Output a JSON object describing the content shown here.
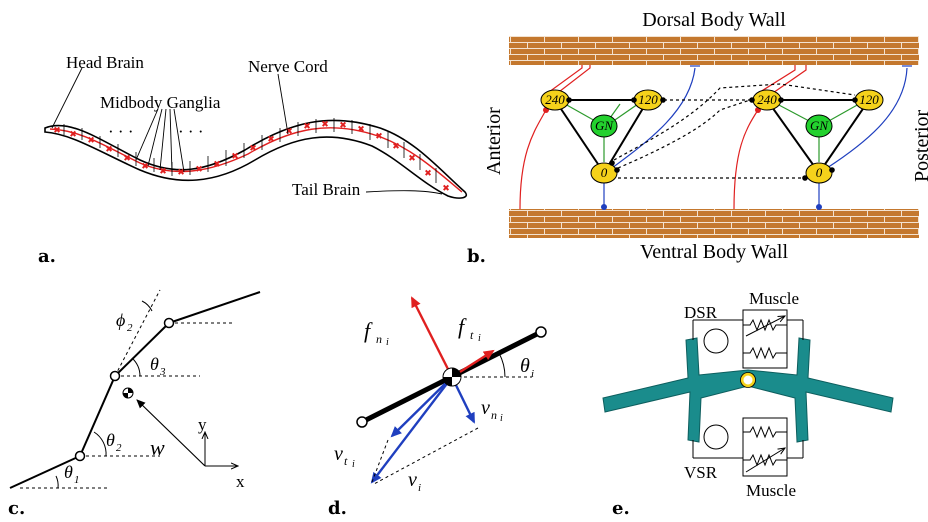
{
  "colors": {
    "brick": "#c4782e",
    "brick_line": "#ffffff",
    "node_yellow": "#f5d21b",
    "node_green": "#23d12e",
    "ganglion_red": "#e02020",
    "teal": "#1a8c8c",
    "red_line": "#e02020",
    "blue_line": "#1f3fbf",
    "green_line": "#2c9a2c"
  },
  "panel_labels": {
    "a": "a.",
    "b": "b.",
    "c": "c.",
    "d": "d.",
    "e": "e."
  },
  "panel_a": {
    "head_brain": "Head Brain",
    "midbody_ganglia": "Midbody Ganglia",
    "nerve_cord": "Nerve Cord",
    "tail_brain": "Tail Brain",
    "dots_left": "· · ·",
    "dots_right": "· · ·"
  },
  "panel_b": {
    "dorsal": "Dorsal Body Wall",
    "ventral": "Ventral Body Wall",
    "anterior": "Anterior",
    "posterior": "Posterior",
    "node_240": "240",
    "node_120": "120",
    "node_0": "0",
    "node_gn": "GN"
  },
  "panel_c": {
    "phi2": "ϕ",
    "phi2_sub": "2",
    "theta3": "θ",
    "theta3_sub": "3",
    "theta2": "θ",
    "theta2_sub": "2",
    "theta1": "θ",
    "theta1_sub": "1",
    "w": "w",
    "y": "y",
    "x": "x"
  },
  "panel_d": {
    "f": "f",
    "f_n_sub": "n",
    "f_t_sub": "t",
    "i": "i",
    "theta": "θ",
    "v": "v",
    "v_n_sub": "n",
    "v_t_sub": "t"
  },
  "panel_e": {
    "dsr": "DSR",
    "vsr": "VSR",
    "muscle_top": "Muscle",
    "muscle_bottom": "Muscle"
  }
}
